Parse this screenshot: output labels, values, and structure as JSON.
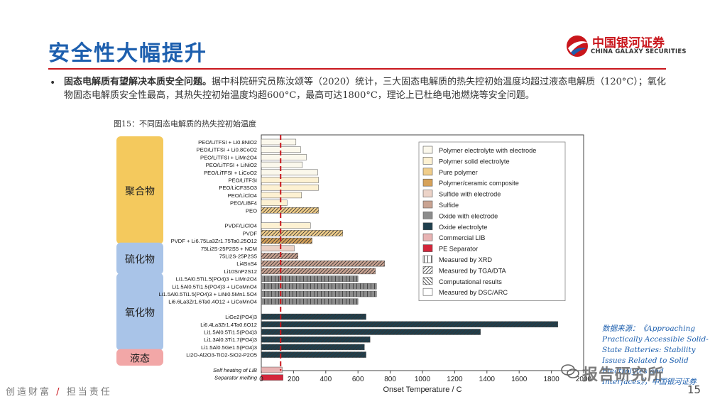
{
  "header": {
    "title": "安全性大幅提升"
  },
  "logo": {
    "cn": "中国银河证券",
    "en": "CHINA GALAXY SECURITIES"
  },
  "bullet": {
    "bold": "固态电解质有望解决本质安全问题。",
    "text": "据中科院研究员陈汝颂等（2020）统计，三大固态电解质的热失控初始温度均超过液态电解质（120°C）；氧化物固态电解质安全性最高，其热失控初始温度均超600°C，最高可达1800°C，理论上已杜绝电池燃烧等安全问题。"
  },
  "figure": {
    "caption": "图15：不同固态电解质的热失控初始温度"
  },
  "source": {
    "text": "数据来源：《Approaching Practically Accessible Solid-State Batteries: Stability Issues Related to Solid Electrolytes and Interfaces》，中国银河证券"
  },
  "footer": {
    "left_a": "创造财富",
    "slash": "/",
    "left_b": "担当责任",
    "page": "15"
  },
  "watermark": {
    "text": "报告研究所"
  },
  "colors": {
    "title_blue": "#1d5fae",
    "brand_red": "#c9161c",
    "group_yellow": "#f4c95d",
    "group_blue": "#a9c4e8",
    "group_pink": "#f2a7a7",
    "ref_line": "#c9161c"
  },
  "chart_data": {
    "type": "bar",
    "orientation": "horizontal",
    "xlabel": "Onset Temperature / C",
    "xlim": [
      0,
      2000
    ],
    "xticks": [
      0,
      200,
      400,
      600,
      800,
      1000,
      1200,
      1400,
      1600,
      1800,
      2000
    ],
    "reference_line": 120,
    "groups": [
      {
        "label": "聚合物",
        "color": "#f4c95d",
        "start": 0,
        "end": 13
      },
      {
        "label": "硫化物",
        "color": "#a9c4e8",
        "start": 14,
        "end": 17
      },
      {
        "label": "氧化物",
        "color": "#a9c4e8",
        "start": 18,
        "end": 27
      },
      {
        "label": "液态",
        "color": "#f2a7a7",
        "start": 28,
        "end": 29
      }
    ],
    "bars": [
      {
        "label": "PEO/LiTFSI + Li0.8NiO2",
        "value": 215,
        "category": "Polymer electrolyte with electrode",
        "measure": "Measured by DSC/ARC"
      },
      {
        "label": "PEO/LiTFSI + Li0.8CoO2",
        "value": 245,
        "category": "Polymer electrolyte with electrode",
        "measure": "Measured by DSC/ARC"
      },
      {
        "label": "PEO/LiTFSI + LiMn2O4",
        "value": 280,
        "category": "Polymer electrolyte with electrode",
        "measure": "Measured by DSC/ARC"
      },
      {
        "label": "PEO/LiTFSI + LiNiO2",
        "value": 255,
        "category": "Polymer electrolyte with electrode",
        "measure": "Measured by DSC/ARC"
      },
      {
        "label": "PEO/LiTFSI + LiCoO2",
        "value": 350,
        "category": "Polymer electrolyte with electrode",
        "measure": "Measured by DSC/ARC"
      },
      {
        "label": "PEO/LiTFSI",
        "value": 355,
        "category": "Polymer solid electrolyte",
        "measure": "Measured by DSC/ARC"
      },
      {
        "label": "PEO/LiCF3SO3",
        "value": 355,
        "category": "Polymer solid electrolyte",
        "measure": "Measured by DSC/ARC"
      },
      {
        "label": "PEO/LiClO4",
        "value": 250,
        "category": "Polymer solid electrolyte",
        "measure": "Measured by DSC/ARC"
      },
      {
        "label": "PEO/LiBF4",
        "value": 160,
        "category": "Polymer solid electrolyte",
        "measure": "Measured by DSC/ARC"
      },
      {
        "label": "PEO",
        "value": 355,
        "category": "Pure polymer",
        "measure": "Measured by TGA/DTA"
      },
      {
        "label": "",
        "value": null
      },
      {
        "label": "PVDF/LiClO4",
        "value": 305,
        "category": "Polymer solid electrolyte",
        "measure": "Measured by DSC/ARC"
      },
      {
        "label": "PVDF",
        "value": 505,
        "category": "Pure polymer",
        "measure": "Measured by TGA/DTA"
      },
      {
        "label": "PVDF + Li6.75La3Zr1.75Ta0.25O12",
        "value": 315,
        "category": "Polymer/ceramic composite",
        "measure": "Measured by TGA/DTA"
      },
      {
        "label": "75Li2S-25P2S5 + NCM",
        "value": 205,
        "category": "Sulfide with electrode",
        "measure": "Measured by DSC/ARC"
      },
      {
        "label": "75Li2S·25P2S5",
        "value": 228,
        "category": "Sulfide",
        "measure": "Measured by TGA/DTA"
      },
      {
        "label": "Li4SnS4",
        "value": 765,
        "category": "Sulfide",
        "measure": "Measured by TGA/DTA"
      },
      {
        "label": "Li10SnP2S12",
        "value": 708,
        "category": "Sulfide",
        "measure": "Measured by TGA/DTA"
      },
      {
        "label": "Li1.5Al0.5Ti1.5(PO4)3 + LiMn2O4",
        "value": 600,
        "category": "Oxide with electrode",
        "measure": "Measured by XRD"
      },
      {
        "label": "Li1.5Al0.5Ti1.5(PO4)3 + LiCoMnO4",
        "value": 715,
        "category": "Oxide with electrode",
        "measure": "Measured by XRD"
      },
      {
        "label": "Li1.5Al0.5Ti1.5(PO4)3 + LiNi0.5Mn1.5O4",
        "value": 715,
        "category": "Oxide with electrode",
        "measure": "Measured by XRD"
      },
      {
        "label": "Li6.6La3Zr1.6Ta0.4O12 + LiCoMnO4",
        "value": 600,
        "category": "Oxide with electrode",
        "measure": "Measured by XRD"
      },
      {
        "label": "",
        "value": null
      },
      {
        "label": "LiGe2(PO4)3",
        "value": 650,
        "category": "Oxide electrolyte",
        "measure": "Measured by TGA/DTA"
      },
      {
        "label": "Li6.4La3Zr1.4Ta0.6O12",
        "value": 1840,
        "category": "Oxide electrolyte",
        "measure": "Measured by TGA/DTA"
      },
      {
        "label": "Li1.5Al0.5Ti1.5(PO4)3",
        "value": 1360,
        "category": "Oxide electrolyte",
        "measure": "Measured by TGA/DTA"
      },
      {
        "label": "Li1.3Al0.3Ti1.7(PO4)3",
        "value": 675,
        "category": "Oxide electrolyte",
        "measure": "Measured by TGA/DTA"
      },
      {
        "label": "Li1.5Al0.5Ge1.5(PO4)3",
        "value": 640,
        "category": "Oxide electrolyte",
        "measure": "Measured by TGA/DTA"
      },
      {
        "label": "Li2O-Al2O3-TiO2-SiO2-P2O5",
        "value": 650,
        "category": "Oxide electrolyte",
        "measure": "Measured by TGA/DTA"
      },
      {
        "label": "",
        "value": null
      },
      {
        "label": "Self heating of LIB",
        "value": 130,
        "category": "Commercial LIB",
        "measure": "Measured by DSC/ARC"
      },
      {
        "label": "Separator melting",
        "value": 135,
        "category": "PE Separator",
        "measure": "Measured by DSC/ARC"
      }
    ],
    "legend_placement": "top-right",
    "legend": [
      {
        "name": "Polymer electrolyte with electrode",
        "color": "#fbf8ec",
        "pattern": "solid"
      },
      {
        "name": "Polymer solid electrolyte",
        "color": "#fdf1d2",
        "pattern": "solid"
      },
      {
        "name": "Pure polymer",
        "color": "#f0cd8a",
        "pattern": "solid"
      },
      {
        "name": "Polymer/ceramic composite",
        "color": "#d6a25a",
        "pattern": "solid"
      },
      {
        "name": "Sulfide with electrode",
        "color": "#ecd3c8",
        "pattern": "solid"
      },
      {
        "name": "Sulfide",
        "color": "#c9a392",
        "pattern": "solid"
      },
      {
        "name": "Oxide with electrode",
        "color": "#8c8c8c",
        "pattern": "solid"
      },
      {
        "name": "Oxide electrolyte",
        "color": "#1f3f4d",
        "pattern": "solid"
      },
      {
        "name": "Commercial LIB",
        "color": "#e8b3b3",
        "pattern": "solid"
      },
      {
        "name": "PE Separator",
        "color": "#d3263b",
        "pattern": "solid"
      },
      {
        "name": "Measured by XRD",
        "color": "#ffffff",
        "pattern": "vertical"
      },
      {
        "name": "Measured by TGA/DTA",
        "color": "#ffffff",
        "pattern": "diagonal"
      },
      {
        "name": "Computational results",
        "color": "#ffffff",
        "pattern": "backdiag"
      },
      {
        "name": "Measured by DSC/ARC",
        "color": "#ffffff",
        "pattern": "solid"
      }
    ]
  }
}
